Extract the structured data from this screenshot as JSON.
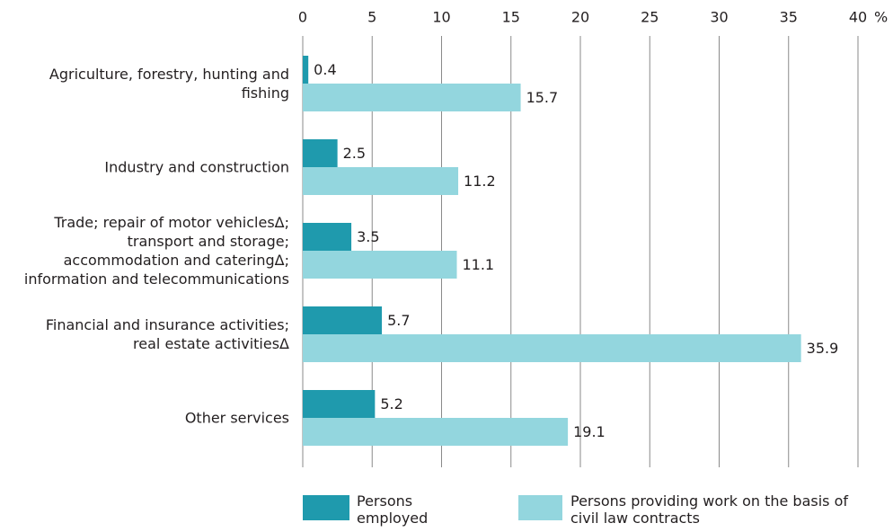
{
  "chart_data": {
    "type": "bar",
    "orientation": "horizontal",
    "categories": [
      "Agriculture, forestry, hunting and fishing",
      "Industry and construction",
      "Trade; repair of motor vehiclesΔ; transport and storage; accommodation and cateringΔ; information and telecommunications",
      "Financial and insurance activities; real estate activitiesΔ",
      "Other services"
    ],
    "series": [
      {
        "name": "Persons employed",
        "color": "#1f9aad",
        "values": [
          0.4,
          2.5,
          3.5,
          5.7,
          5.2
        ]
      },
      {
        "name": "Persons providing work on the basis of civil law contracts",
        "color": "#93d6de",
        "values": [
          15.7,
          11.2,
          11.1,
          35.9,
          19.1
        ]
      }
    ],
    "xlim": [
      0,
      40
    ],
    "xticks": [
      0,
      5,
      10,
      15,
      20,
      25,
      30,
      35,
      40
    ],
    "x_unit": "%",
    "grid": true,
    "legend": "bottom"
  }
}
